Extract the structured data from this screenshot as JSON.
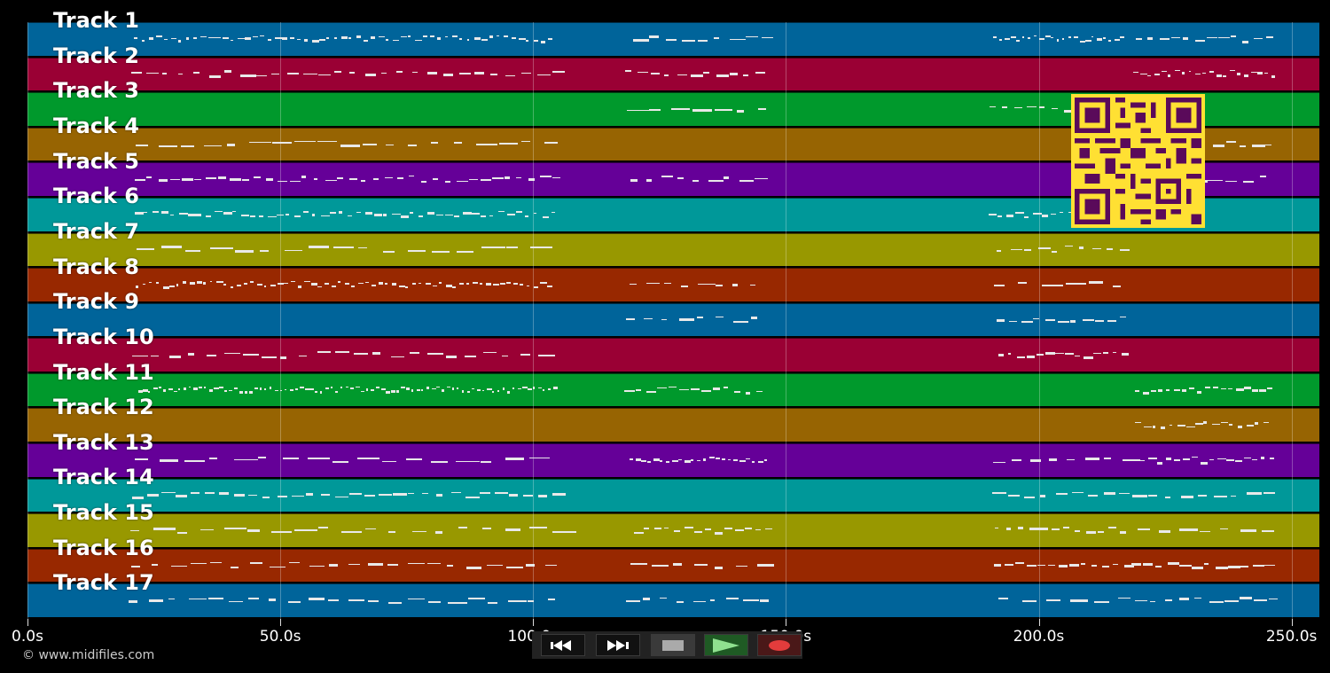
{
  "tracks": [
    {
      "label": "Track 1",
      "color": "#00649a"
    },
    {
      "label": "Track 2",
      "color": "#9a0034"
    },
    {
      "label": "Track 3",
      "color": "#00992c"
    },
    {
      "label": "Track 4",
      "color": "#976402"
    },
    {
      "label": "Track 5",
      "color": "#650098"
    },
    {
      "label": "Track 6",
      "color": "#009899"
    },
    {
      "label": "Track 7",
      "color": "#989800"
    },
    {
      "label": "Track 8",
      "color": "#982800"
    },
    {
      "label": "Track 9",
      "color": "#00649a"
    },
    {
      "label": "Track 10",
      "color": "#9a0034"
    },
    {
      "label": "Track 11",
      "color": "#00992c"
    },
    {
      "label": "Track 12",
      "color": "#976402"
    },
    {
      "label": "Track 13",
      "color": "#650098"
    },
    {
      "label": "Track 14",
      "color": "#009899"
    },
    {
      "label": "Track 15",
      "color": "#989800"
    },
    {
      "label": "Track 16",
      "color": "#982800"
    },
    {
      "label": "Track 17",
      "color": "#00649a"
    }
  ],
  "timeline": {
    "ticks": [
      "0.0s",
      "50.0s",
      "100.0s",
      "150.0s",
      "200.0s",
      "250.0s"
    ],
    "tick_seconds": [
      0,
      50,
      100,
      150,
      200,
      250
    ],
    "duration_seconds": 255.5
  },
  "copyright": "© www.midifiles.com",
  "transport": {
    "buttons": [
      {
        "name": "rewind-button",
        "icon": "rewind-icon"
      },
      {
        "name": "fast-forward-button",
        "icon": "fast-forward-icon"
      },
      {
        "name": "stop-button",
        "icon": "stop-icon"
      },
      {
        "name": "play-button",
        "icon": "play-icon"
      },
      {
        "name": "record-button",
        "icon": "record-icon"
      }
    ]
  },
  "qr_code": {
    "icon": "qr-code-icon",
    "color": "#ffe033",
    "fg": "#5a0a5a"
  }
}
